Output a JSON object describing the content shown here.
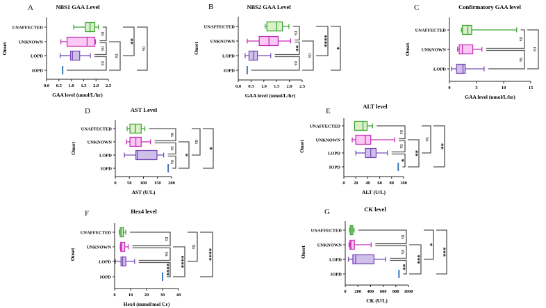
{
  "colors": {
    "UNAFFECTED": {
      "stroke": "#3fa535",
      "fill": "#d9f0c9"
    },
    "UNKNOWN": {
      "stroke": "#c42fb8",
      "fill": "#fcc9f4"
    },
    "LOPD": {
      "stroke": "#7a4cb8",
      "fill": "#cfc0ea"
    },
    "IOPD": {
      "stroke": "#3a78c0",
      "fill": "#3a78c0"
    }
  },
  "chart_data": [
    {
      "letter": "A",
      "title": "NBS1 GAA Level",
      "type": "box",
      "xlabel": "GAA level (umol/L/hr)",
      "ylabel": "Onset",
      "xlim": [
        0,
        2.5
      ],
      "ticks": [
        "0.0",
        "0.5",
        "1.0",
        "1.5",
        "2.0",
        "2.5"
      ],
      "tick_values": [
        0,
        0.5,
        1,
        1.5,
        2,
        2.5
      ],
      "groups": [
        {
          "name": "UNAFFECTED",
          "min": 1.1,
          "q1": 1.57,
          "median": 1.76,
          "q3": 1.95,
          "max": 2.1
        },
        {
          "name": "UNKNOWN",
          "min": 0.58,
          "q1": 0.83,
          "median": 1.64,
          "q3": 1.95,
          "max": 1.98
        },
        {
          "name": "LOPD",
          "min": 0.55,
          "q1": 0.97,
          "median": 1.05,
          "q3": 1.34,
          "max": 1.77
        },
        {
          "name": "IOPD",
          "value": 0.65
        }
      ],
      "comparisons": [
        [
          "UNAFFECTED",
          "UNKNOWN",
          "ns"
        ],
        [
          "UNKNOWN",
          "LOPD",
          "ns"
        ],
        [
          "LOPD",
          "IOPD",
          "ns"
        ],
        [
          "UNKNOWN",
          "IOPD",
          "ns"
        ],
        [
          "UNAFFECTED",
          "LOPD",
          "**"
        ],
        [
          "UNAFFECTED",
          "IOPD",
          "ns"
        ]
      ]
    },
    {
      "letter": "B",
      "title": "NBS2 GAA Level",
      "type": "box",
      "xlabel": "GAA level (umol/L/hr)",
      "ylabel": "Onset",
      "xlim": [
        0,
        2.5
      ],
      "ticks": [
        "0.0",
        "0.5",
        "1.0",
        "1.5",
        "2.0",
        "2.5"
      ],
      "tick_values": [
        0,
        0.5,
        1,
        1.5,
        2,
        2.5
      ],
      "groups": [
        {
          "name": "UNAFFECTED",
          "min": 1.05,
          "q1": 1.12,
          "median": 1.5,
          "q3": 1.73,
          "max": 1.98
        },
        {
          "name": "UNKNOWN",
          "min": 0.35,
          "q1": 0.82,
          "median": 1.2,
          "q3": 1.56,
          "max": 2.05
        },
        {
          "name": "LOPD",
          "min": 0.27,
          "q1": 0.42,
          "median": 0.6,
          "q3": 0.75,
          "max": 1.27
        },
        {
          "name": "IOPD",
          "value": 0.35
        }
      ],
      "comparisons": [
        [
          "UNAFFECTED",
          "UNKNOWN",
          "ns"
        ],
        [
          "UNKNOWN",
          "LOPD",
          "**"
        ],
        [
          "LOPD",
          "IOPD",
          "ns"
        ],
        [
          "UNKNOWN",
          "IOPD",
          "ns"
        ],
        [
          "UNAFFECTED",
          "LOPD",
          "****"
        ],
        [
          "UNAFFECTED",
          "IOPD",
          "*"
        ]
      ]
    },
    {
      "letter": "C",
      "title": "Confirmatory GAA level",
      "type": "box",
      "xlabel": "GAA level (umol/L/hr)",
      "ylabel": "Onset",
      "xlim": [
        0,
        15
      ],
      "ticks": [
        "0",
        "5",
        "10",
        "15"
      ],
      "tick_values": [
        0,
        5,
        10,
        15
      ],
      "groups": [
        {
          "name": "UNAFFECTED",
          "min": 2.2,
          "q1": 2.4,
          "median": 3.4,
          "q3": 4.1,
          "max": 12.4
        },
        {
          "name": "UNKNOWN",
          "min": 1.5,
          "q1": 1.8,
          "median": 2.4,
          "q3": 4.3,
          "max": 6.0
        },
        {
          "name": "LOPD",
          "min": 0.4,
          "q1": 1.3,
          "median": 2.5,
          "q3": 2.9,
          "max": 6.4
        }
      ],
      "comparisons": [
        [
          "UNAFFECTED",
          "UNKNOWN",
          "ns"
        ],
        [
          "UNKNOWN",
          "LOPD",
          "ns"
        ],
        [
          "UNAFFECTED",
          "LOPD",
          "ns"
        ]
      ]
    },
    {
      "letter": "D",
      "title": "AST Level",
      "type": "box",
      "xlabel": "AST (U/L)",
      "ylabel": "Onset",
      "xlim": [
        0,
        200
      ],
      "ticks": [
        "0",
        "50",
        "100",
        "150",
        "200"
      ],
      "tick_values": [
        0,
        50,
        100,
        150,
        200
      ],
      "groups": [
        {
          "name": "UNAFFECTED",
          "min": 42,
          "q1": 52,
          "median": 72,
          "q3": 92,
          "max": 105
        },
        {
          "name": "UNKNOWN",
          "min": 40,
          "q1": 52,
          "median": 73,
          "q3": 92,
          "max": 125
        },
        {
          "name": "LOPD",
          "min": 32,
          "q1": 73,
          "median": 78,
          "q3": 148,
          "max": 172
        },
        {
          "name": "IOPD",
          "value": 188
        }
      ],
      "comparisons": [
        [
          "UNAFFECTED",
          "UNKNOWN",
          "ns"
        ],
        [
          "UNKNOWN",
          "LOPD",
          "ns"
        ],
        [
          "LOPD",
          "IOPD",
          "ns"
        ],
        [
          "UNKNOWN",
          "IOPD",
          "*"
        ],
        [
          "UNAFFECTED",
          "LOPD",
          "ns"
        ],
        [
          "UNAFFECTED",
          "IOPD",
          "*"
        ]
      ]
    },
    {
      "letter": "E",
      "title": "ALT level",
      "type": "box",
      "xlabel": "ALT (U/L)",
      "ylabel": "Onset",
      "xlim": [
        0,
        100
      ],
      "ticks": [
        "0",
        "20",
        "40",
        "60",
        "80",
        "100"
      ],
      "tick_values": [
        0,
        20,
        40,
        60,
        80,
        100
      ],
      "groups": [
        {
          "name": "UNAFFECTED",
          "min": 18,
          "q1": 18,
          "median": 32,
          "q3": 39,
          "max": 48
        },
        {
          "name": "UNKNOWN",
          "min": 14,
          "q1": 20,
          "median": 36,
          "q3": 45,
          "max": 85
        },
        {
          "name": "LOPD",
          "min": 20,
          "q1": 36,
          "median": 45,
          "q3": 54,
          "max": 73
        },
        {
          "name": "IOPD",
          "value": 91
        }
      ],
      "comparisons": [
        [
          "UNAFFECTED",
          "UNKNOWN",
          "ns"
        ],
        [
          "UNKNOWN",
          "LOPD",
          "ns"
        ],
        [
          "LOPD",
          "IOPD",
          "*"
        ],
        [
          "UNKNOWN",
          "IOPD",
          "**"
        ],
        [
          "UNAFFECTED",
          "LOPD",
          "ns"
        ],
        [
          "UNAFFECTED",
          "IOPD",
          "**"
        ]
      ]
    },
    {
      "letter": "F",
      "title": "Hex4 level",
      "type": "box",
      "xlabel": "Hex4 (mmol/mol Cr)",
      "ylabel": "Onset",
      "xlim": [
        0,
        40
      ],
      "ticks": [
        "0",
        "10",
        "20",
        "30",
        "40"
      ],
      "tick_values": [
        0,
        10,
        20,
        30,
        40
      ],
      "groups": [
        {
          "name": "UNAFFECTED",
          "min": 3,
          "q1": 3.5,
          "median": 4.5,
          "q3": 5.5,
          "max": 7
        },
        {
          "name": "UNKNOWN",
          "min": 3.5,
          "q1": 3.8,
          "median": 4.5,
          "q3": 6.3,
          "max": 8.5
        },
        {
          "name": "LOPD",
          "min": 0.5,
          "q1": 4,
          "median": 5,
          "q3": 7,
          "max": 12.5
        },
        {
          "name": "IOPD",
          "value": 30
        }
      ],
      "comparisons": [
        [
          "UNAFFECTED",
          "UNKNOWN",
          "ns"
        ],
        [
          "UNKNOWN",
          "LOPD",
          "ns"
        ],
        [
          "LOPD",
          "IOPD",
          "****"
        ],
        [
          "UNKNOWN",
          "IOPD",
          "****"
        ],
        [
          "UNAFFECTED",
          "LOPD",
          "ns"
        ],
        [
          "UNAFFECTED",
          "IOPD",
          "****"
        ]
      ]
    },
    {
      "letter": "G",
      "title": "CK level",
      "type": "box",
      "xlabel": "CK (U/L)",
      "ylabel": "Onset",
      "xlim": [
        0,
        1000
      ],
      "ticks": [
        "0",
        "200",
        "400",
        "600",
        "800",
        "1000"
      ],
      "tick_values": [
        0,
        200,
        400,
        600,
        800,
        1000
      ],
      "groups": [
        {
          "name": "UNAFFECTED",
          "min": 70,
          "q1": 80,
          "median": 100,
          "q3": 120,
          "max": 140
        },
        {
          "name": "UNKNOWN",
          "min": 60,
          "q1": 75,
          "median": 90,
          "q3": 145,
          "max": 410
        },
        {
          "name": "LOPD",
          "min": 50,
          "q1": 120,
          "median": 165,
          "q3": 455,
          "max": 640
        },
        {
          "name": "IOPD",
          "value": 850
        }
      ],
      "comparisons": [
        [
          "UNAFFECTED",
          "UNKNOWN",
          "ns"
        ],
        [
          "UNKNOWN",
          "LOPD",
          "ns"
        ],
        [
          "LOPD",
          "IOPD",
          "**"
        ],
        [
          "UNKNOWN",
          "IOPD",
          "***"
        ],
        [
          "UNAFFECTED",
          "LOPD",
          "*"
        ],
        [
          "UNAFFECTED",
          "IOPD",
          "***"
        ]
      ]
    }
  ]
}
